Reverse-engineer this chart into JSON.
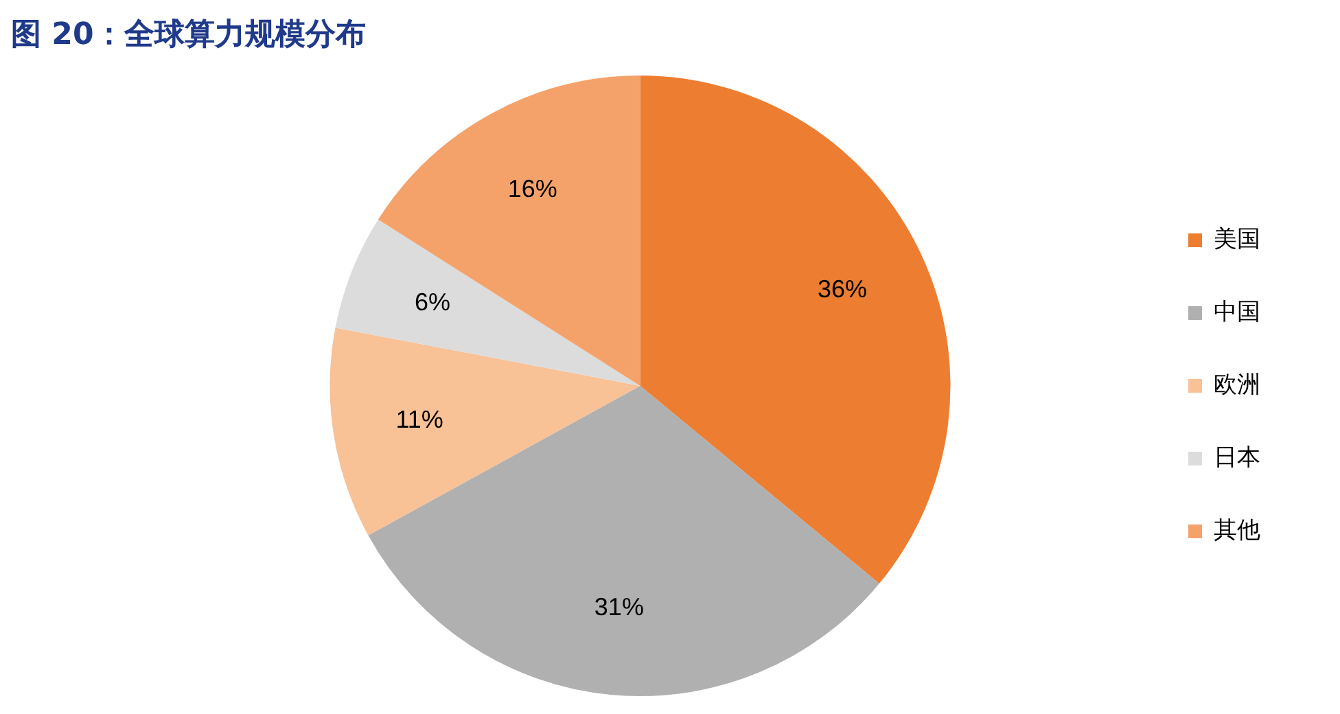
{
  "chart_data": {
    "type": "pie",
    "title": "图 20：全球算力规模分布",
    "categories": [
      "美国",
      "中国",
      "欧洲",
      "日本",
      "其他"
    ],
    "values": [
      36,
      31,
      11,
      6,
      16
    ],
    "value_labels": [
      "36%",
      "31%",
      "11%",
      "6%",
      "16%"
    ],
    "colors": [
      "#ed7d31",
      "#b0b0b0",
      "#f8c196",
      "#dcdcdc",
      "#f4a26a"
    ],
    "legend": "right"
  }
}
